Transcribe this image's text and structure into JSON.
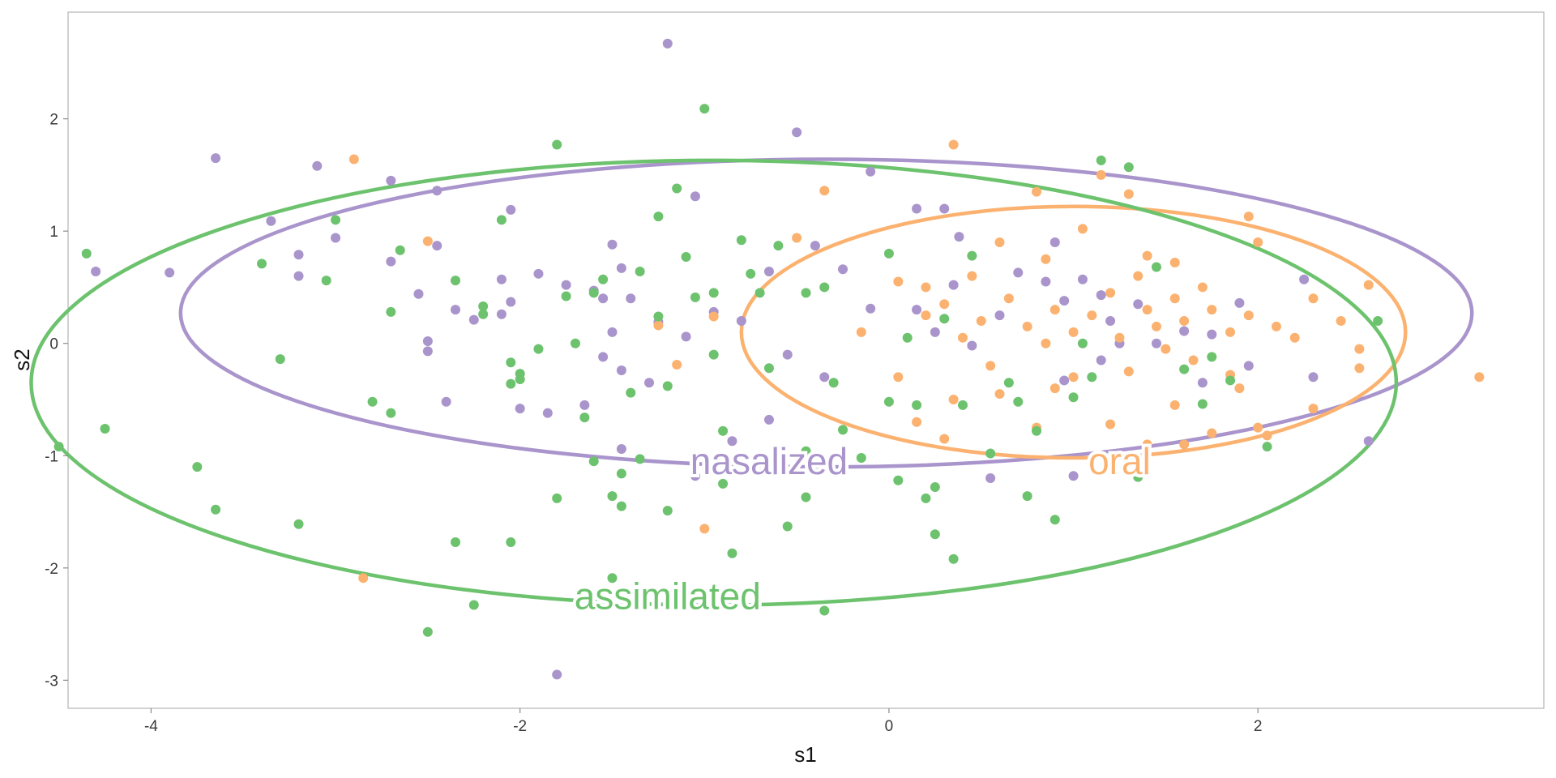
{
  "chart_data": {
    "type": "scatter",
    "title": "",
    "xlabel": "s1",
    "ylabel": "s2",
    "xlim": [
      -4.45,
      3.55
    ],
    "ylim": [
      -3.25,
      2.95
    ],
    "x_ticks": [
      -4,
      -2,
      0,
      2
    ],
    "x_tick_labels": [
      "-4",
      "-2",
      "0",
      "2"
    ],
    "y_ticks": [
      -3,
      -2,
      -1,
      0,
      1,
      2
    ],
    "y_tick_labels": [
      "-3",
      "-2",
      "-1",
      "0",
      "1",
      "2"
    ],
    "grid": false,
    "legend": "none",
    "series": [
      {
        "name": "nasalized",
        "color": "#a994cc",
        "ellipse": {
          "cx": -0.34,
          "cy": 0.27,
          "rx": 3.5,
          "ry": 1.37,
          "label_x": -0.65,
          "label_y": -1.05
        },
        "points": [
          [
            -1.2,
            2.67
          ],
          [
            -1.8,
            -2.95
          ],
          [
            -3.65,
            1.65
          ],
          [
            -4.3,
            0.64
          ],
          [
            -3.9,
            0.63
          ],
          [
            -3.1,
            1.58
          ],
          [
            -3.35,
            1.09
          ],
          [
            -3.2,
            0.6
          ],
          [
            -3.2,
            0.79
          ],
          [
            -3.0,
            0.94
          ],
          [
            -2.7,
            1.45
          ],
          [
            -2.7,
            0.73
          ],
          [
            -2.45,
            1.36
          ],
          [
            -2.45,
            0.87
          ],
          [
            -2.55,
            0.44
          ],
          [
            -2.5,
            0.02
          ],
          [
            -2.5,
            -0.07
          ],
          [
            -2.35,
            0.3
          ],
          [
            -2.4,
            -0.52
          ],
          [
            -2.05,
            1.19
          ],
          [
            -2.1,
            0.57
          ],
          [
            -2.05,
            0.37
          ],
          [
            -2.1,
            0.26
          ],
          [
            -1.9,
            0.62
          ],
          [
            -1.55,
            0.4
          ],
          [
            -1.5,
            0.88
          ],
          [
            -1.45,
            0.67
          ],
          [
            -1.4,
            0.4
          ],
          [
            -1.5,
            0.1
          ],
          [
            -1.55,
            -0.12
          ],
          [
            -1.45,
            -0.24
          ],
          [
            -1.3,
            -0.35
          ],
          [
            -1.25,
            0.19
          ],
          [
            -1.1,
            0.06
          ],
          [
            -1.05,
            1.31
          ],
          [
            -0.95,
            0.28
          ],
          [
            -0.8,
            0.2
          ],
          [
            -0.65,
            0.64
          ],
          [
            -0.55,
            -0.1
          ],
          [
            -0.4,
            0.87
          ],
          [
            -0.25,
            0.66
          ],
          [
            -0.35,
            -0.3
          ],
          [
            -0.1,
            0.31
          ],
          [
            -0.5,
            1.88
          ],
          [
            -0.1,
            1.53
          ],
          [
            0.15,
            1.2
          ],
          [
            0.3,
            1.2
          ],
          [
            0.38,
            0.95
          ],
          [
            0.35,
            0.52
          ],
          [
            0.15,
            0.3
          ],
          [
            0.25,
            0.1
          ],
          [
            0.45,
            -0.02
          ],
          [
            0.6,
            0.25
          ],
          [
            0.7,
            0.63
          ],
          [
            0.85,
            0.55
          ],
          [
            0.9,
            0.9
          ],
          [
            0.95,
            0.38
          ],
          [
            1.05,
            0.57
          ],
          [
            1.15,
            0.43
          ],
          [
            1.2,
            0.2
          ],
          [
            1.25,
            0.0
          ],
          [
            1.15,
            -0.15
          ],
          [
            1.35,
            0.35
          ],
          [
            1.45,
            0.0
          ],
          [
            1.6,
            0.11
          ],
          [
            1.7,
            -0.35
          ],
          [
            1.75,
            0.08
          ],
          [
            1.9,
            0.36
          ],
          [
            1.95,
            -0.2
          ],
          [
            2.25,
            0.57
          ],
          [
            2.3,
            -0.3
          ],
          [
            2.6,
            -0.87
          ],
          [
            0.55,
            -1.2
          ],
          [
            0.95,
            -0.33
          ],
          [
            -0.85,
            -0.87
          ],
          [
            -1.05,
            -1.18
          ],
          [
            -0.65,
            -0.68
          ],
          [
            -1.45,
            -0.94
          ],
          [
            1.0,
            -1.18
          ],
          [
            -2.0,
            -0.58
          ],
          [
            -1.85,
            -0.62
          ],
          [
            -1.65,
            -0.55
          ],
          [
            -1.75,
            0.52
          ],
          [
            -1.6,
            0.47
          ],
          [
            -2.25,
            0.21
          ]
        ]
      },
      {
        "name": "oral",
        "color": "#fbb270",
        "ellipse": {
          "cx": 1.0,
          "cy": 0.1,
          "rx": 1.8,
          "ry": 1.12,
          "label_x": 1.25,
          "label_y": -1.05
        },
        "points": [
          [
            -2.9,
            1.64
          ],
          [
            -2.85,
            -2.09
          ],
          [
            -2.5,
            0.91
          ],
          [
            -1.25,
            0.16
          ],
          [
            -1.15,
            -0.19
          ],
          [
            -0.95,
            0.24
          ],
          [
            -0.5,
            0.94
          ],
          [
            -0.35,
            1.36
          ],
          [
            0.35,
            1.77
          ],
          [
            -1.0,
            -1.65
          ],
          [
            0.2,
            0.5
          ],
          [
            0.3,
            0.35
          ],
          [
            0.2,
            0.25
          ],
          [
            0.4,
            0.05
          ],
          [
            0.5,
            0.2
          ],
          [
            0.55,
            -0.2
          ],
          [
            0.65,
            0.4
          ],
          [
            0.75,
            0.15
          ],
          [
            0.85,
            0.0
          ],
          [
            0.9,
            0.3
          ],
          [
            1.0,
            0.1
          ],
          [
            1.0,
            -0.3
          ],
          [
            1.1,
            0.25
          ],
          [
            1.2,
            0.45
          ],
          [
            1.25,
            0.05
          ],
          [
            1.3,
            -0.25
          ],
          [
            1.35,
            0.6
          ],
          [
            1.4,
            0.3
          ],
          [
            1.45,
            0.15
          ],
          [
            1.5,
            -0.05
          ],
          [
            1.55,
            0.4
          ],
          [
            1.6,
            0.2
          ],
          [
            1.65,
            -0.15
          ],
          [
            1.7,
            0.5
          ],
          [
            1.75,
            0.3
          ],
          [
            1.85,
            0.1
          ],
          [
            1.9,
            -0.4
          ],
          [
            1.95,
            0.25
          ],
          [
            2.0,
            0.9
          ],
          [
            2.1,
            0.15
          ],
          [
            2.2,
            0.05
          ],
          [
            2.3,
            0.4
          ],
          [
            2.45,
            0.2
          ],
          [
            2.55,
            -0.05
          ],
          [
            2.6,
            0.52
          ],
          [
            2.55,
            -0.22
          ],
          [
            3.2,
            -0.3
          ],
          [
            0.8,
            1.35
          ],
          [
            1.15,
            1.5
          ],
          [
            1.3,
            1.33
          ],
          [
            1.95,
            1.13
          ],
          [
            1.2,
            -0.72
          ],
          [
            1.4,
            -0.9
          ],
          [
            1.55,
            -0.55
          ],
          [
            1.6,
            -0.9
          ],
          [
            1.75,
            -0.8
          ],
          [
            1.85,
            -0.28
          ],
          [
            2.0,
            -0.75
          ],
          [
            2.05,
            -0.82
          ],
          [
            2.3,
            -0.58
          ],
          [
            0.8,
            -0.75
          ],
          [
            0.9,
            -0.4
          ],
          [
            0.6,
            -0.45
          ],
          [
            0.35,
            -0.5
          ],
          [
            0.3,
            -0.85
          ],
          [
            0.15,
            -0.7
          ],
          [
            0.05,
            -0.3
          ],
          [
            -0.15,
            0.1
          ],
          [
            0.05,
            0.55
          ],
          [
            0.45,
            0.6
          ],
          [
            0.6,
            0.9
          ],
          [
            0.85,
            0.75
          ],
          [
            1.05,
            1.02
          ],
          [
            1.4,
            0.78
          ],
          [
            1.55,
            0.72
          ]
        ]
      },
      {
        "name": "assimilated",
        "color": "#6cc26d",
        "ellipse": {
          "cx": -0.95,
          "cy": -0.35,
          "rx": 3.7,
          "ry": 1.98,
          "label_x": -1.2,
          "label_y": -2.25
        },
        "points": [
          [
            -4.5,
            -0.92
          ],
          [
            -4.35,
            0.8
          ],
          [
            -4.25,
            -0.76
          ],
          [
            -3.75,
            -1.1
          ],
          [
            -3.65,
            -1.48
          ],
          [
            -3.4,
            0.71
          ],
          [
            -3.3,
            -0.14
          ],
          [
            -3.2,
            -1.61
          ],
          [
            -3.05,
            0.56
          ],
          [
            -3.0,
            1.1
          ],
          [
            -2.8,
            -0.52
          ],
          [
            -2.7,
            -0.62
          ],
          [
            -2.7,
            0.28
          ],
          [
            -2.65,
            0.83
          ],
          [
            -2.5,
            -2.57
          ],
          [
            -2.35,
            -1.77
          ],
          [
            -2.25,
            -2.33
          ],
          [
            -2.35,
            0.56
          ],
          [
            -2.2,
            0.26
          ],
          [
            -2.2,
            0.33
          ],
          [
            -2.1,
            1.1
          ],
          [
            -2.05,
            -0.17
          ],
          [
            -2.05,
            -0.36
          ],
          [
            -2.0,
            -0.27
          ],
          [
            -2.0,
            -0.32
          ],
          [
            -2.05,
            -1.77
          ],
          [
            -1.9,
            -0.05
          ],
          [
            -1.8,
            1.77
          ],
          [
            -1.8,
            -1.38
          ],
          [
            -1.75,
            0.42
          ],
          [
            -1.7,
            0.0
          ],
          [
            -1.65,
            -0.66
          ],
          [
            -1.6,
            -1.05
          ],
          [
            -1.55,
            0.57
          ],
          [
            -1.5,
            -1.36
          ],
          [
            -1.45,
            -1.45
          ],
          [
            -1.45,
            -1.16
          ],
          [
            -1.4,
            -0.44
          ],
          [
            -1.35,
            -1.03
          ],
          [
            -1.35,
            0.64
          ],
          [
            -1.25,
            1.13
          ],
          [
            -1.2,
            -1.49
          ],
          [
            -1.15,
            1.38
          ],
          [
            -1.1,
            0.77
          ],
          [
            -1.05,
            0.41
          ],
          [
            -0.95,
            0.45
          ],
          [
            -0.95,
            -0.1
          ],
          [
            -0.9,
            -0.78
          ],
          [
            -0.9,
            -1.25
          ],
          [
            -0.85,
            -1.87
          ],
          [
            -0.8,
            0.92
          ],
          [
            -0.75,
            0.62
          ],
          [
            -0.7,
            0.45
          ],
          [
            -0.65,
            -0.22
          ],
          [
            -0.6,
            0.87
          ],
          [
            -0.55,
            -1.63
          ],
          [
            -0.45,
            -0.96
          ],
          [
            -0.45,
            -1.37
          ],
          [
            -0.35,
            0.5
          ],
          [
            -0.3,
            -0.35
          ],
          [
            -0.25,
            -0.77
          ],
          [
            -1.0,
            2.09
          ],
          [
            -1.5,
            -2.09
          ],
          [
            -0.35,
            -2.38
          ],
          [
            -0.15,
            -1.02
          ],
          [
            0.0,
            -0.52
          ],
          [
            0.05,
            -1.22
          ],
          [
            0.15,
            -0.55
          ],
          [
            0.2,
            -1.38
          ],
          [
            0.25,
            -1.7
          ],
          [
            0.25,
            -1.28
          ],
          [
            0.35,
            -1.92
          ],
          [
            0.4,
            -0.55
          ],
          [
            0.45,
            0.78
          ],
          [
            0.55,
            -0.98
          ],
          [
            0.65,
            -0.35
          ],
          [
            0.7,
            -0.52
          ],
          [
            0.75,
            -1.36
          ],
          [
            0.8,
            -0.78
          ],
          [
            0.9,
            -1.57
          ],
          [
            1.0,
            -0.48
          ],
          [
            1.05,
            0.0
          ],
          [
            1.1,
            -0.3
          ],
          [
            1.15,
            1.63
          ],
          [
            1.3,
            1.57
          ],
          [
            1.35,
            -1.19
          ],
          [
            1.45,
            0.68
          ],
          [
            1.6,
            -0.23
          ],
          [
            1.7,
            -0.54
          ],
          [
            1.75,
            -0.12
          ],
          [
            1.85,
            -0.33
          ],
          [
            2.05,
            -0.92
          ],
          [
            2.65,
            0.2
          ],
          [
            0.0,
            0.8
          ],
          [
            0.3,
            0.22
          ],
          [
            0.1,
            0.05
          ],
          [
            -1.25,
            0.24
          ],
          [
            -1.2,
            -0.38
          ],
          [
            -0.45,
            0.45
          ],
          [
            -1.6,
            0.45
          ]
        ]
      }
    ]
  }
}
